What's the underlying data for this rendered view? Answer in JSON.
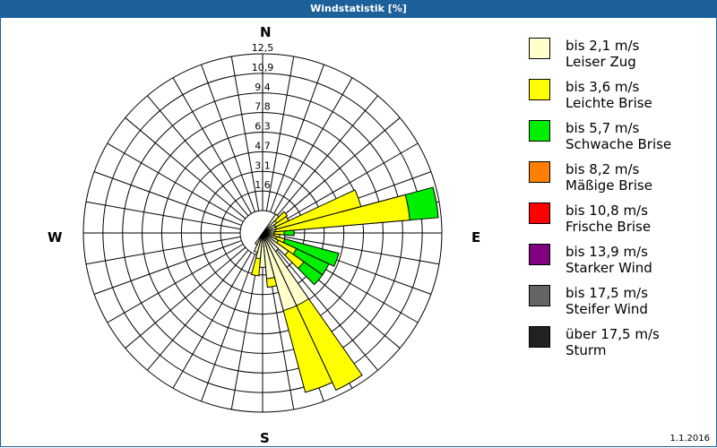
{
  "title": "Windstatistik [%]",
  "date": "1.1.2016",
  "compass": {
    "n": "N",
    "e": "E",
    "s": "S",
    "w": "W"
  },
  "legend": [
    {
      "range": "bis 2,1 m/s",
      "name": "Leiser Zug",
      "color": "#ffffcc"
    },
    {
      "range": "bis 3,6 m/s",
      "name": "Leichte Brise",
      "color": "#ffff00"
    },
    {
      "range": "bis 5,7 m/s",
      "name": "Schwache Brise",
      "color": "#00ee00"
    },
    {
      "range": "bis 8,2 m/s",
      "name": "Mäßige Brise",
      "color": "#ff8000"
    },
    {
      "range": "bis 10,8 m/s",
      "name": "Frische Brise",
      "color": "#ff0000"
    },
    {
      "range": "bis 13,9 m/s",
      "name": "Starker Wind",
      "color": "#800080"
    },
    {
      "range": "bis 17,5 m/s",
      "name": "Steifer Wind",
      "color": "#646464"
    },
    {
      "range": "über 17,5 m/s",
      "name": "Sturm",
      "color": "#222222"
    }
  ],
  "chart_data": {
    "type": "wind-rose",
    "title": "Windstatistik [%]",
    "unit": "%",
    "ring_labels": [
      "1,6",
      "3,1",
      "4,7",
      "6,3",
      "7,8",
      "9,4",
      "10,9",
      "12,5"
    ],
    "rmax": 12.5,
    "sector_width_deg": 10,
    "series_names": [
      "Leiser Zug",
      "Leichte Brise",
      "Schwache Brise"
    ],
    "sectors": [
      {
        "bearing": 40,
        "cumulative": [
          1.6,
          1.6,
          1.6
        ]
      },
      {
        "bearing": 50,
        "cumulative": [
          1.2,
          2.1,
          2.1
        ]
      },
      {
        "bearing": 60,
        "cumulative": [
          1.0,
          2.0,
          2.0
        ]
      },
      {
        "bearing": 70,
        "cumulative": [
          1.0,
          7.1,
          7.1
        ]
      },
      {
        "bearing": 80,
        "cumulative": [
          0.9,
          10.3,
          12.3
        ]
      },
      {
        "bearing": 90,
        "cumulative": [
          0.8,
          1.5,
          2.2
        ]
      },
      {
        "bearing": 100,
        "cumulative": [
          0.8,
          1.2,
          1.2
        ]
      },
      {
        "bearing": 110,
        "cumulative": [
          1.0,
          1.6,
          5.5
        ]
      },
      {
        "bearing": 120,
        "cumulative": [
          1.2,
          2.6,
          5.1
        ]
      },
      {
        "bearing": 130,
        "cumulative": [
          2.2,
          3.5,
          5.1
        ]
      },
      {
        "bearing": 150,
        "cumulative": [
          5.6,
          12.1,
          12.1
        ]
      },
      {
        "bearing": 160,
        "cumulative": [
          5.6,
          11.5,
          11.5
        ]
      },
      {
        "bearing": 170,
        "cumulative": [
          3.2,
          3.8,
          3.8
        ]
      },
      {
        "bearing": 180,
        "cumulative": [
          2.4,
          2.4,
          2.4
        ]
      },
      {
        "bearing": 190,
        "cumulative": [
          1.8,
          3.0,
          3.0
        ]
      },
      {
        "bearing": 200,
        "cumulative": [
          1.4,
          1.4,
          1.4
        ]
      },
      {
        "bearing": 210,
        "cumulative": [
          0.9,
          0.9,
          0.9
        ]
      }
    ]
  }
}
